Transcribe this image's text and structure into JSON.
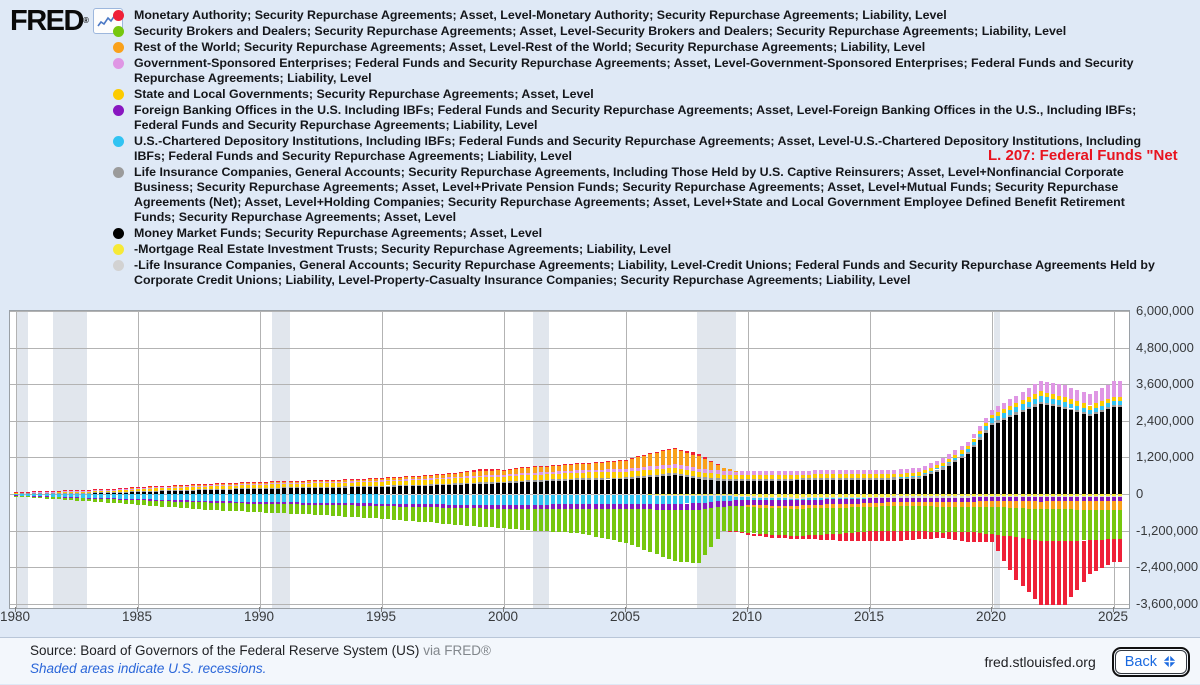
{
  "header": {
    "logo_text": "FRED",
    "logo_reg": "®",
    "annotation": "L. 207: Federal Funds \"Net"
  },
  "colors": {
    "red": "#ef2038",
    "green": "#76c70e",
    "orange": "#f9a11b",
    "pink": "#df96e4",
    "yellow": "#fccb00",
    "purple": "#8816c0",
    "cyan": "#31c3f2",
    "gray": "#9b9b9b",
    "black": "#000000",
    "lightyellow": "#f6e937",
    "lightgray": "#d2d2d2",
    "annotation_red": "#e8131f",
    "recession_band": "#e1e6ed"
  },
  "legend": [
    {
      "color": "red",
      "label": "Monetary Authority; Security Repurchase Agreements; Asset, Level-Monetary Authority; Security Repurchase Agreements; Liability, Level"
    },
    {
      "color": "green",
      "label": "Security Brokers and Dealers; Security Repurchase Agreements; Asset, Level-Security Brokers and Dealers; Security Repurchase Agreements; Liability, Level"
    },
    {
      "color": "orange",
      "label": "Rest of the World; Security Repurchase Agreements; Asset, Level-Rest of the World; Security Repurchase Agreements; Liability, Level"
    },
    {
      "color": "pink",
      "label": "Government-Sponsored Enterprises; Federal Funds and Security Repurchase Agreements; Asset, Level-Government-Sponsored Enterprises; Federal Funds and Security Repurchase Agreements; Liability, Level"
    },
    {
      "color": "yellow",
      "label": "State and Local Governments; Security Repurchase Agreements; Asset, Level"
    },
    {
      "color": "purple",
      "label": "Foreign Banking Offices in the U.S. Including IBFs; Federal Funds and Security Repurchase Agreements; Asset, Level-Foreign Banking Offices in the U.S., Including IBFs; Federal Funds and Security Repurchase Agreements; Liability, Level"
    },
    {
      "color": "cyan",
      "label": "U.S.-Chartered Depository Institutions, Including IBFs; Federal Funds and Security Repurchase Agreements; Asset, Level-U.S.-Chartered Depository Institutions, Including IBFs; Federal Funds and Security Repurchase Agreements; Liability, Level"
    },
    {
      "color": "gray",
      "label": "Life Insurance Companies, General Accounts; Security Repurchase Agreements, Including Those Held by U.S. Captive Reinsurers; Asset, Level+Nonfinancial Corporate Business; Security Repurchase Agreements; Asset, Level+Private Pension Funds; Security Repurchase Agreements; Asset, Level+Mutual Funds; Security Repurchase Agreements (Net); Asset, Level+Holding Companies; Security Repurchase Agreements; Asset, Level+State and Local Government Employee Defined Benefit Retirement Funds; Security Repurchase Agreements; Asset, Level"
    },
    {
      "color": "black",
      "label": "Money Market Funds; Security Repurchase Agreements; Asset, Level"
    },
    {
      "color": "lightyellow",
      "label": "-Mortgage Real Estate Investment Trusts; Security Repurchase Agreements; Liability, Level"
    },
    {
      "color": "lightgray",
      "label": "-Life Insurance Companies, General Accounts; Security Repurchase Agreements; Liability, Level-Credit Unions; Federal Funds and Security Repurchase Agreements Held by Corporate Credit Unions; Liability, Level-Property-Casualty Insurance Companies; Security Repurchase Agreements; Liability, Level"
    }
  ],
  "chart_data": {
    "type": "bar",
    "subtype": "stacked-diverging",
    "unit": "millions of U.S. dollars",
    "bars_per_year": 4,
    "x_range": [
      1980.0,
      2025.25
    ],
    "ylim": [
      -3740000,
      6000000
    ],
    "gridline_step": 1200000,
    "y_ticks": [
      {
        "value": 6000000,
        "label": "6,000,000"
      },
      {
        "value": 4800000,
        "label": "4,800,000"
      },
      {
        "value": 3600000,
        "label": "3,600,000"
      },
      {
        "value": 2400000,
        "label": "2,400,000"
      },
      {
        "value": 1200000,
        "label": "1,200,000"
      },
      {
        "value": 0,
        "label": "0"
      },
      {
        "value": -1200000,
        "label": "-1,200,000"
      },
      {
        "value": -2400000,
        "label": "-2,400,000"
      },
      {
        "value": -3600000,
        "label": "-3,600,000"
      }
    ],
    "x_ticks": [
      {
        "year": 1980,
        "label": "1980"
      },
      {
        "year": 1985,
        "label": "1985"
      },
      {
        "year": 1990,
        "label": "1990"
      },
      {
        "year": 1995,
        "label": "1995"
      },
      {
        "year": 2000,
        "label": "2000"
      },
      {
        "year": 2005,
        "label": "2005"
      },
      {
        "year": 2010,
        "label": "2010"
      },
      {
        "year": 2015,
        "label": "2015"
      },
      {
        "year": 2020,
        "label": "2020"
      },
      {
        "year": 2025,
        "label": "2025"
      }
    ],
    "recessions": [
      [
        1980.0,
        1980.5
      ],
      [
        1981.5,
        1982.92
      ],
      [
        1990.5,
        1991.25
      ],
      [
        2001.17,
        2001.83
      ],
      [
        2007.92,
        2009.5
      ],
      [
        2020.08,
        2020.33
      ]
    ],
    "anchor_years_start": 1980,
    "positive_stack_order": [
      "black",
      "gray",
      "cyan",
      "yellow",
      "pink",
      "orange",
      "red"
    ],
    "negative_stack_order": [
      "lightyellow",
      "lightgray",
      "cyan",
      "purple",
      "orange",
      "green",
      "red"
    ],
    "series": [
      {
        "id": "black",
        "name": "Money Market Funds (net)",
        "color": "black",
        "values_thousands_of_millions": [
          10,
          15,
          22,
          30,
          45,
          70,
          90,
          110,
          130,
          150,
          170,
          180,
          190,
          200,
          215,
          230,
          250,
          270,
          300,
          330,
          350,
          390,
          420,
          450,
          470,
          480,
          550,
          620,
          480,
          420,
          430,
          430,
          440,
          450,
          460,
          450,
          470,
          500,
          800,
          1300,
          2250,
          2600,
          2950,
          2800,
          2550,
          2850
        ]
      },
      {
        "id": "gray",
        "name": "Life Insurance + Pension + Mutual Funds etc. (net)",
        "color": "gray",
        "values_thousands_of_millions": [
          8,
          10,
          12,
          14,
          16,
          20,
          22,
          24,
          26,
          28,
          30,
          32,
          34,
          36,
          38,
          40,
          42,
          44,
          46,
          48,
          50,
          52,
          54,
          56,
          58,
          60,
          65,
          75,
          80,
          70,
          60,
          62,
          64,
          66,
          68,
          70,
          72,
          74,
          76,
          80,
          80,
          75,
          70,
          65,
          60,
          60
        ]
      },
      {
        "id": "yellow",
        "name": "State and Local Governments (net)",
        "color": "yellow",
        "values_thousands_of_millions": [
          25,
          35,
          45,
          55,
          65,
          80,
          90,
          95,
          100,
          105,
          110,
          112,
          115,
          118,
          125,
          130,
          140,
          150,
          160,
          165,
          170,
          175,
          180,
          185,
          188,
          190,
          185,
          170,
          150,
          140,
          130,
          128,
          126,
          124,
          122,
          120,
          115,
          110,
          105,
          100,
          110,
          130,
          160,
          155,
          150,
          150
        ]
      },
      {
        "id": "pink",
        "name": "Government-Sponsored Enterprises (net)",
        "color": "pink",
        "values_thousands_of_millions": [
          5,
          7,
          9,
          11,
          13,
          15,
          17,
          19,
          21,
          23,
          25,
          28,
          31,
          34,
          37,
          40,
          44,
          48,
          52,
          56,
          60,
          66,
          72,
          78,
          84,
          90,
          100,
          110,
          120,
          120,
          120,
          125,
          130,
          135,
          140,
          140,
          142,
          145,
          148,
          150,
          160,
          250,
          350,
          380,
          380,
          500
        ]
      },
      {
        "id": "orange",
        "name": "Rest of the World (net)",
        "color": "orange",
        "values_thousands_of_millions": [
          15,
          20,
          25,
          30,
          35,
          40,
          45,
          50,
          55,
          58,
          60,
          63,
          66,
          70,
          75,
          80,
          95,
          110,
          125,
          140,
          160,
          180,
          200,
          220,
          230,
          280,
          420,
          500,
          400,
          100,
          -60,
          -80,
          -100,
          -110,
          -115,
          -120,
          -130,
          -140,
          -160,
          -180,
          -200,
          -220,
          -250,
          -270,
          -290,
          -300
        ]
      },
      {
        "id": "red",
        "name": "Monetary Authority (net)",
        "color": "red",
        "values_thousands_of_millions": [
          2,
          2,
          2,
          2,
          2,
          3,
          3,
          3,
          3,
          4,
          4,
          4,
          5,
          5,
          5,
          6,
          6,
          8,
          10,
          80,
          5,
          30,
          15,
          15,
          20,
          25,
          25,
          30,
          80,
          0,
          -60,
          -90,
          -90,
          -160,
          -250,
          -320,
          -350,
          -280,
          -180,
          -350,
          -250,
          -1400,
          -2100,
          -2100,
          -1100,
          -750
        ]
      },
      {
        "id": "green",
        "name": "Security Brokers and Dealers (net)",
        "color": "green",
        "values_thousands_of_millions": [
          -30,
          -50,
          -70,
          -95,
          -120,
          -150,
          -180,
          -210,
          -240,
          -260,
          -280,
          -300,
          -320,
          -350,
          -380,
          -420,
          -460,
          -500,
          -560,
          -600,
          -630,
          -700,
          -750,
          -800,
          -950,
          -1100,
          -1400,
          -1700,
          -1750,
          -800,
          -850,
          -880,
          -900,
          -880,
          -850,
          -800,
          -800,
          -800,
          -850,
          -800,
          -900,
          -950,
          -1050,
          -1050,
          -1000,
          -950
        ]
      },
      {
        "id": "cyan",
        "name": "U.S.-Chartered Depository Institutions (net)",
        "color": "cyan",
        "values_thousands_of_millions": [
          -50,
          -75,
          -100,
          -120,
          -140,
          -160,
          -185,
          -205,
          -225,
          -240,
          -250,
          -260,
          -270,
          -280,
          -290,
          -300,
          -310,
          -320,
          -330,
          -340,
          -350,
          -340,
          -320,
          -300,
          -290,
          -280,
          -270,
          -260,
          -250,
          -150,
          -80,
          -70,
          -60,
          -50,
          -40,
          -20,
          0,
          20,
          40,
          80,
          150,
          170,
          190,
          160,
          140,
          130
        ]
      },
      {
        "id": "purple",
        "name": "Foreign Banking Offices in the U.S. (net)",
        "color": "purple",
        "values_thousands_of_millions": [
          -10,
          -15,
          -20,
          -26,
          -32,
          -40,
          -44,
          -48,
          -52,
          -56,
          -60,
          -64,
          -68,
          -72,
          -76,
          -80,
          -88,
          -96,
          -104,
          -112,
          -120,
          -130,
          -140,
          -150,
          -165,
          -180,
          -190,
          -200,
          -200,
          -190,
          -180,
          -175,
          -170,
          -165,
          -160,
          -155,
          -150,
          -145,
          -142,
          -140,
          -130,
          -140,
          -150,
          -130,
          -120,
          -120
        ]
      },
      {
        "id": "lightyellow",
        "name": "-Mortgage Real Estate Investment Trusts",
        "color": "lightyellow",
        "values_thousands_of_millions": [
          0,
          0,
          0,
          0,
          0,
          0,
          0,
          0,
          0,
          0,
          0,
          0,
          0,
          0,
          0,
          0,
          0,
          0,
          0,
          0,
          0,
          0,
          0,
          -5,
          -10,
          -15,
          -20,
          -25,
          -30,
          -40,
          -80,
          -100,
          -120,
          -100,
          -95,
          -90,
          -85,
          -80,
          -80,
          -80,
          -60,
          -60,
          -60,
          -65,
          -70,
          -70
        ]
      },
      {
        "id": "lightgray",
        "name": "-Life Insurance / Credit Unions / P&C Insurance",
        "color": "lightgray",
        "values_thousands_of_millions": [
          -2,
          -3,
          -4,
          -5,
          -6,
          -8,
          -9,
          -10,
          -11,
          -12,
          -14,
          -15,
          -16,
          -17,
          -18,
          -20,
          -21,
          -22,
          -23,
          -24,
          -25,
          -26,
          -27,
          -28,
          -29,
          -30,
          -31,
          -32,
          -33,
          -34,
          -35,
          -36,
          -36,
          -37,
          -37,
          -38,
          -38,
          -39,
          -39,
          -40,
          -40,
          -40,
          -40,
          -40,
          -40,
          -40
        ]
      }
    ],
    "value_scale_note": "series values are in thousands of millions (i.e. multiply by 1000 to get axis units)"
  },
  "footer": {
    "source_label": "Source: Board of Governors of the Federal Reserve System (US)",
    "via_label": "via FRED®",
    "recession_note": "Shaded areas indicate U.S. recessions.",
    "site_url": "fred.stlouisfed.org",
    "back_label": "Back"
  }
}
